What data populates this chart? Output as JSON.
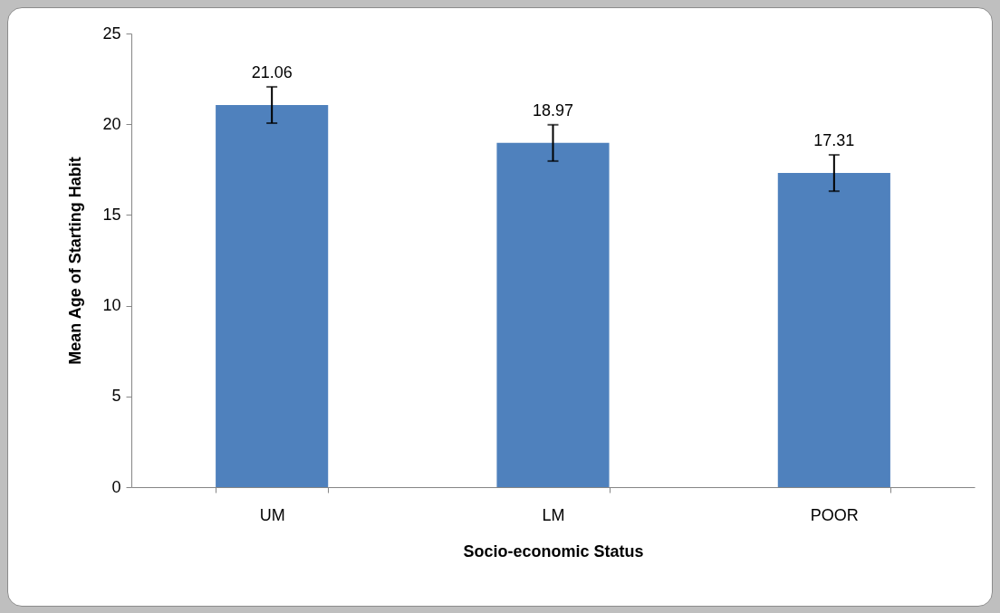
{
  "chart_data": {
    "type": "bar",
    "xlabel": "Socio-economic Status",
    "ylabel": "Mean Age of Starting Habit",
    "categories": [
      "UM",
      "LM",
      "POOR"
    ],
    "values": [
      21.06,
      18.97,
      17.31
    ],
    "errors": [
      1,
      1,
      1
    ],
    "color": "#4f81bd",
    "ylim": [
      0,
      25
    ],
    "yticks": [
      0,
      5,
      10,
      15,
      20,
      25
    ],
    "data_labels": true
  }
}
